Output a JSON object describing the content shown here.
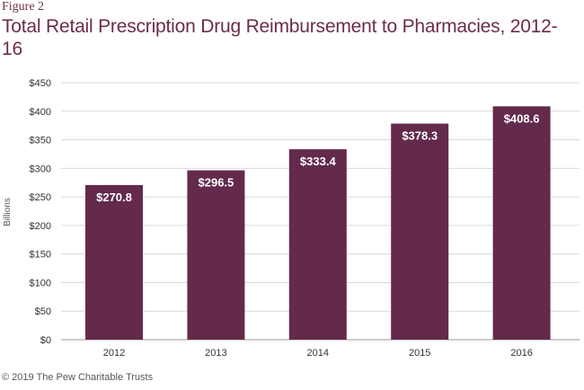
{
  "figure_label": "Figure 2",
  "title": "Total Retail Prescription Drug Reimbursement to Pharmacies, 2012-16",
  "source": "© 2019 The Pew Charitable Trusts",
  "colors": {
    "bar": "#632a4b",
    "title": "#6b2d4b",
    "grid": "#d9d9d9"
  },
  "chart_data": {
    "type": "bar",
    "categories": [
      "2012",
      "2013",
      "2014",
      "2015",
      "2016"
    ],
    "values": [
      270.8,
      296.5,
      333.4,
      378.3,
      408.6
    ],
    "data_labels": [
      "$270.8",
      "$296.5",
      "$333.4",
      "$378.3",
      "$408.6"
    ],
    "ylabel": "Billions",
    "xlabel": "",
    "ylim": [
      0,
      450
    ],
    "yticks": [
      0,
      50,
      100,
      150,
      200,
      250,
      300,
      350,
      400,
      450
    ],
    "ytick_labels": [
      "$0",
      "$50",
      "$100",
      "$150",
      "$200",
      "$250",
      "$300",
      "$350",
      "$400",
      "$450"
    ],
    "grid": true
  }
}
